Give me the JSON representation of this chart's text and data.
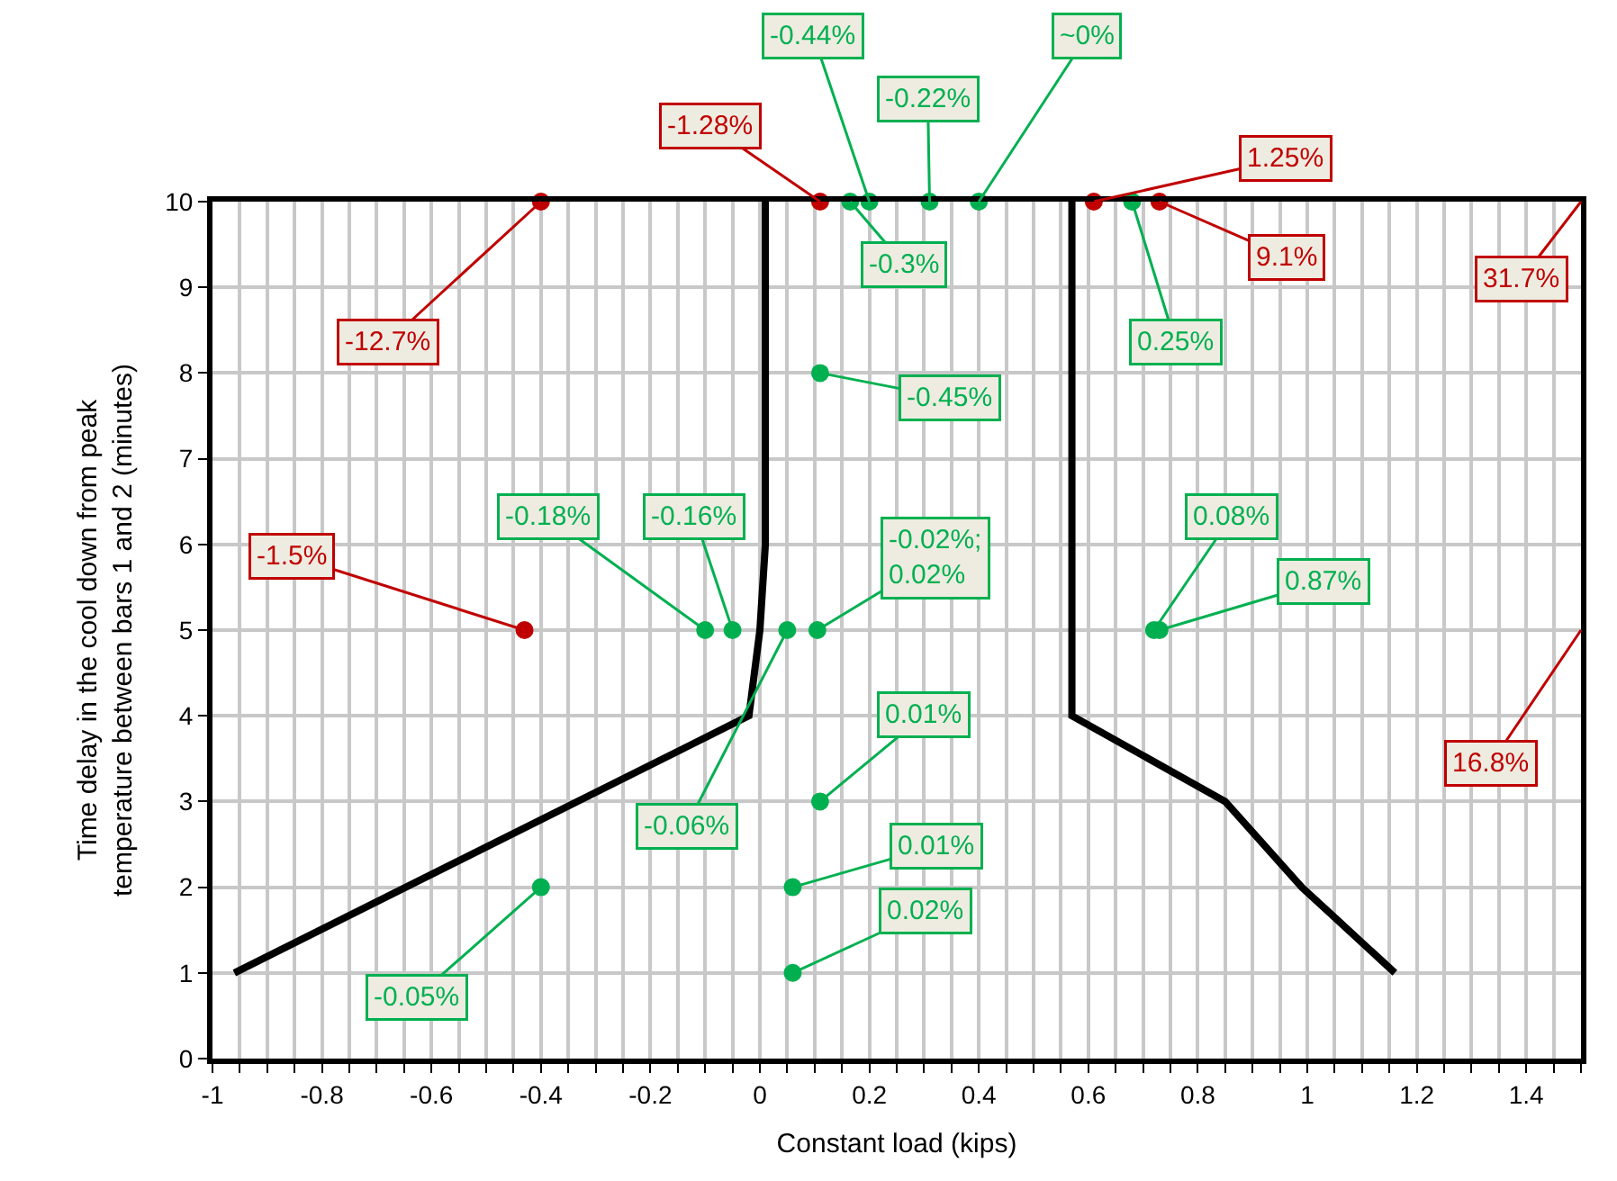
{
  "chart_data": {
    "type": "scatter",
    "xlabel": "Constant load (kips)",
    "ylabel": "Time delay in the cool down from peak temperature between bars 1 and 2 (minutes)",
    "series": [
      {
        "color": "#c00000",
        "marker": "circle",
        "x": [
          -0.4,
          0.11,
          0.61,
          0.73,
          -0.43
        ],
        "values": [
          10,
          10,
          10,
          10,
          5
        ]
      },
      {
        "color": "#00b050",
        "marker": "circle",
        "x": [
          0.165,
          0.2,
          0.31,
          0.4,
          0.68,
          0.11,
          -0.1,
          -0.05,
          0.05,
          0.105,
          0.72,
          0.73,
          0.11,
          0.06,
          0.06,
          -0.4
        ],
        "values": [
          10,
          10,
          10,
          10,
          10,
          8,
          5,
          5,
          5,
          5,
          5,
          5,
          3,
          2,
          1,
          2
        ]
      },
      {
        "type": "line",
        "color": "#000000",
        "marker": "none",
        "x": [
          -0.96,
          -0.02,
          0.0,
          0.01,
          0.01
        ],
        "values": [
          1,
          4,
          5,
          6,
          10
        ]
      },
      {
        "type": "line",
        "color": "#000000",
        "marker": "none",
        "x": [
          1.16,
          0.99,
          0.85,
          0.57,
          0.57
        ],
        "values": [
          1,
          2,
          3,
          4,
          10
        ]
      }
    ],
    "xlim": [
      -1,
      1.5
    ],
    "ylim": [
      0,
      10
    ],
    "xticks": [
      -1,
      {
        "value": -0.95,
        "label": null
      },
      {
        "value": -0.9,
        "label": null
      },
      {
        "value": -0.85,
        "label": null
      },
      -0.8,
      {
        "value": -0.75,
        "label": null
      },
      {
        "value": -0.7,
        "label": null
      },
      {
        "value": -0.65,
        "label": null
      },
      -0.6,
      {
        "value": -0.55,
        "label": null
      },
      {
        "value": -0.5,
        "label": null
      },
      {
        "value": -0.45,
        "label": null
      },
      -0.4,
      {
        "value": -0.35,
        "label": null
      },
      {
        "value": -0.3,
        "label": null
      },
      {
        "value": -0.25,
        "label": null
      },
      -0.2,
      {
        "value": -0.15,
        "label": null
      },
      {
        "value": -0.1,
        "label": null
      },
      {
        "value": -0.05,
        "label": null
      },
      0,
      {
        "value": 0.05,
        "label": null
      },
      {
        "value": 0.1,
        "label": null
      },
      {
        "value": 0.15,
        "label": null
      },
      0.2,
      {
        "value": 0.25,
        "label": null
      },
      {
        "value": 0.3,
        "label": null
      },
      {
        "value": 0.35,
        "label": null
      },
      0.4,
      {
        "value": 0.45,
        "label": null
      },
      {
        "value": 0.5,
        "label": null
      },
      {
        "value": 0.55,
        "label": null
      },
      0.6,
      {
        "value": 0.65,
        "label": null
      },
      {
        "value": 0.7,
        "label": null
      },
      {
        "value": 0.75,
        "label": null
      },
      0.8,
      {
        "value": 0.85,
        "label": null
      },
      {
        "value": 0.9,
        "label": null
      },
      {
        "value": 0.95,
        "label": null
      },
      1,
      {
        "value": 1.05,
        "label": null
      },
      {
        "value": 1.1,
        "label": null
      },
      {
        "value": 1.15,
        "label": null
      },
      1.2,
      {
        "value": 1.25,
        "label": null
      },
      {
        "value": 1.3,
        "label": null
      },
      {
        "value": 1.35,
        "label": null
      },
      1.4,
      {
        "value": 1.45,
        "label": null
      },
      {
        "value": 1.5,
        "label": null
      }
    ],
    "yticks": [
      0,
      1,
      2,
      3,
      4,
      5,
      6,
      7,
      8,
      9,
      10
    ],
    "grid": true,
    "annotations": [
      {
        "text": "-12.7%",
        "x": -0.4,
        "y": 10
      },
      {
        "text": "-1.28%",
        "x": 0.11,
        "y": 10
      },
      {
        "text": "-0.3%",
        "x": 0.165,
        "y": 10
      },
      {
        "text": "-0.44%",
        "x": 0.2,
        "y": 10
      },
      {
        "text": "-0.22%",
        "x": 0.31,
        "y": 10
      },
      {
        "text": "~0%",
        "x": 0.4,
        "y": 10
      },
      {
        "text": "1.25%",
        "x": 0.61,
        "y": 10
      },
      {
        "text": "0.25%",
        "x": 0.68,
        "y": 10
      },
      {
        "text": "9.1%",
        "x": 0.73,
        "y": 10
      },
      "31.7%",
      {
        "text": "-0.45%",
        "x": 0.11,
        "y": 8
      },
      {
        "text": "-1.5%",
        "x": -0.43,
        "y": 5
      },
      {
        "text": "-0.18%",
        "x": -0.1,
        "y": 5
      },
      {
        "text": "-0.16%",
        "x": -0.05,
        "y": 5
      },
      {
        "text": "-0.06%",
        "x": 0.05,
        "y": 5
      },
      {
        "text": "-0.02%;\n0.02%",
        "x": 0.105,
        "y": 5
      },
      {
        "text": "0.08%",
        "x": 0.72,
        "y": 5
      },
      {
        "text": "0.87%",
        "x": 0.73,
        "y": 5
      },
      "16.8%",
      {
        "text": "0.01%",
        "x": 0.11,
        "y": 3
      },
      {
        "text": "0.01%",
        "x": 0.06,
        "y": 2
      },
      {
        "text": "0.02%",
        "x": 0.06,
        "y": 1
      },
      {
        "text": "-0.05%",
        "x": -0.4,
        "y": 2
      }
    ]
  }
}
